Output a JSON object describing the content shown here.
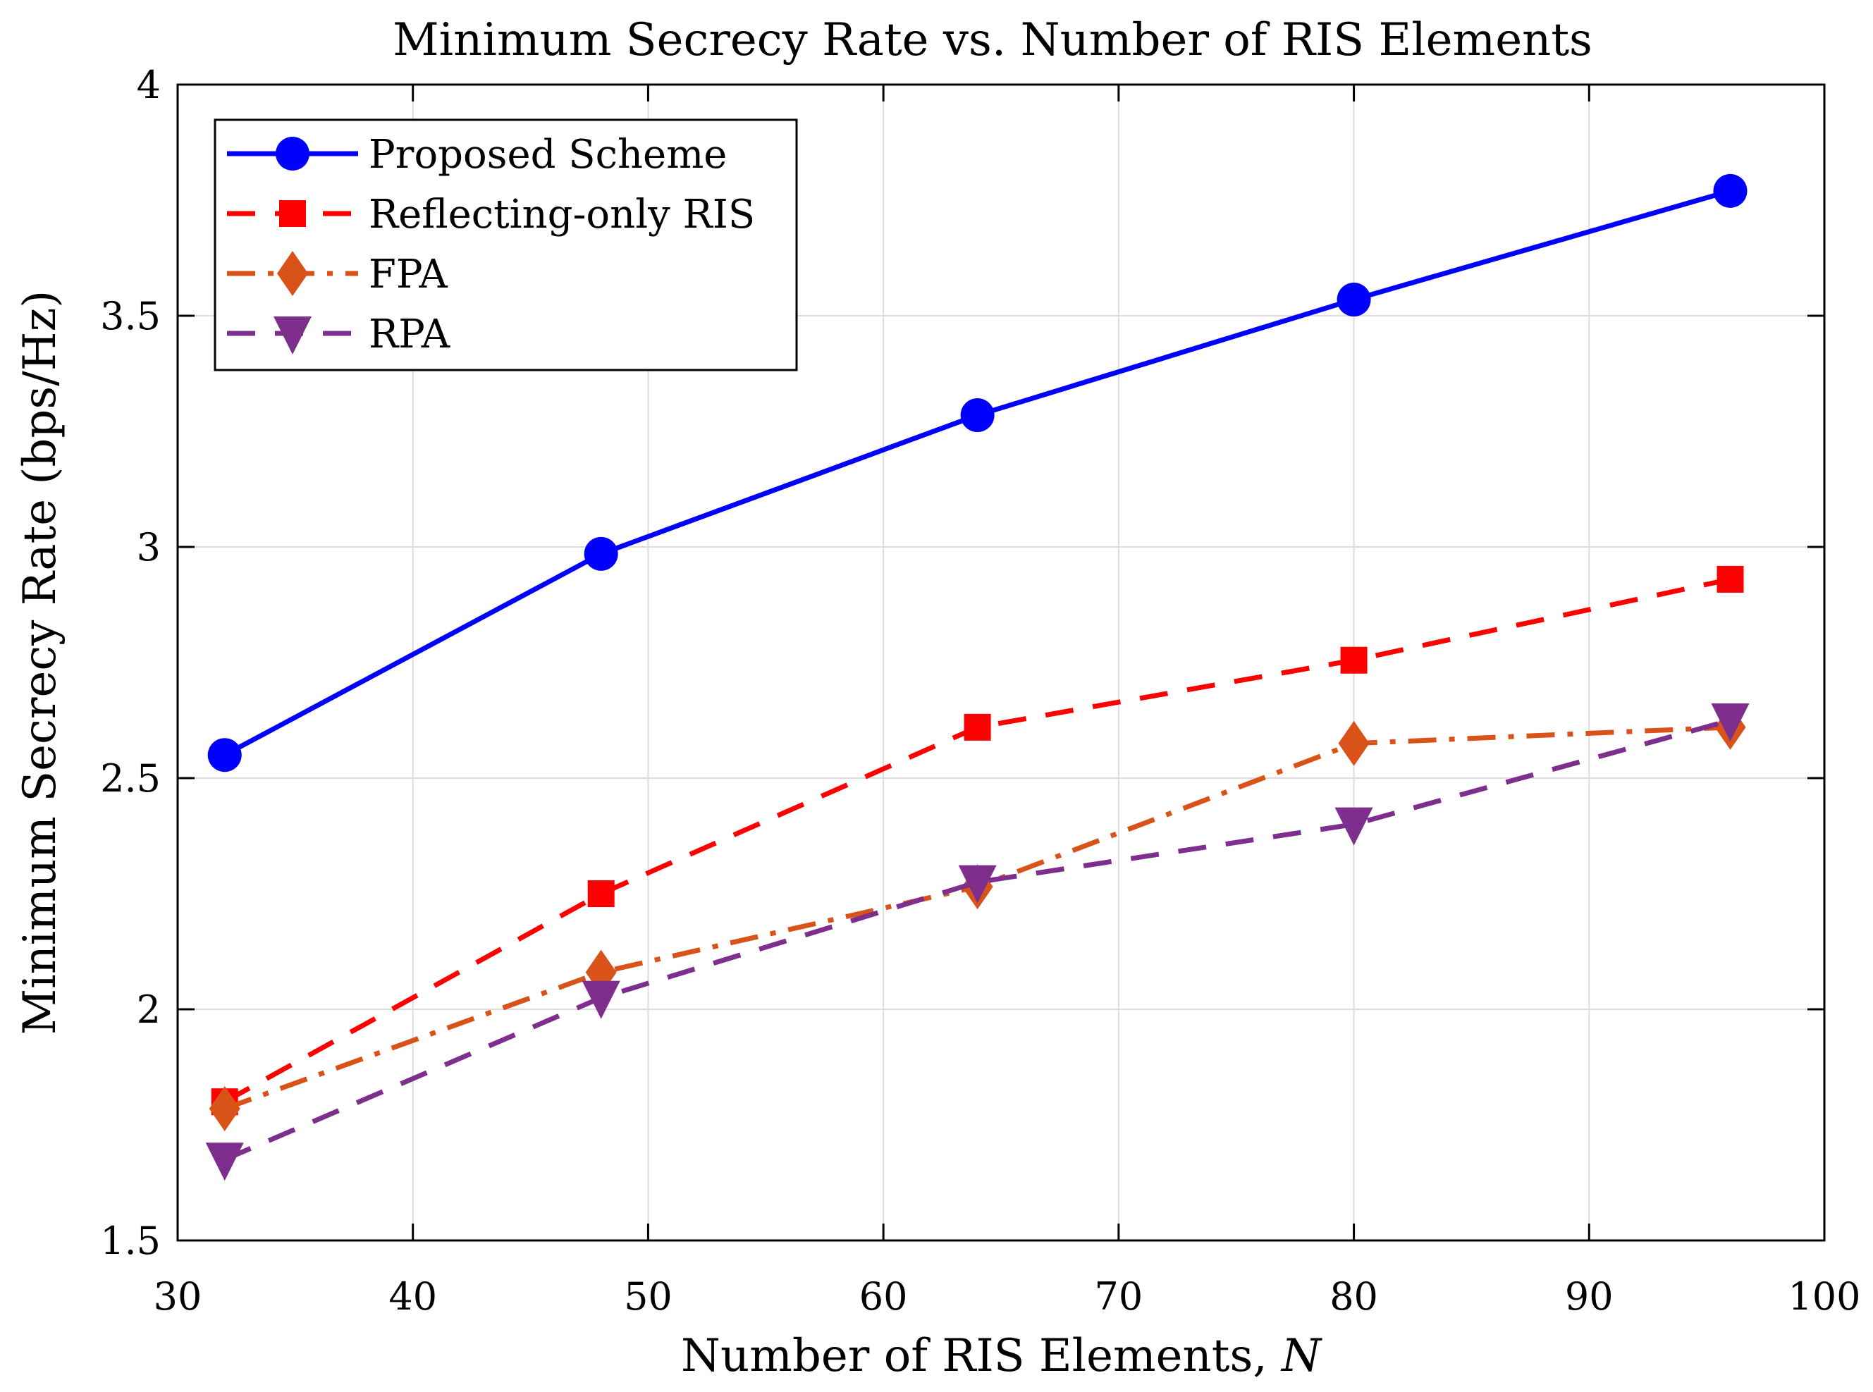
{
  "chart_data": {
    "type": "line",
    "title": "Minimum Secrecy Rate vs. Number of RIS Elements",
    "xlabel": "Number of RIS Elements, ",
    "xlabel_var": "N",
    "ylabel": "Minimum Secrecy Rate (bps/Hz)",
    "xlim": [
      30,
      100
    ],
    "ylim": [
      1.5,
      4
    ],
    "xticks": [
      30,
      40,
      50,
      60,
      70,
      80,
      90,
      100
    ],
    "yticks": [
      1.5,
      2,
      2.5,
      3,
      3.5,
      4
    ],
    "ytick_labels": [
      "1.5",
      "2",
      "2.5",
      "3",
      "3.5",
      "4"
    ],
    "grid": true,
    "legend_position": "top-left",
    "x": [
      32,
      48,
      64,
      80,
      96
    ],
    "series": [
      {
        "name": "Proposed Scheme",
        "values": [
          2.55,
          2.985,
          3.285,
          3.535,
          3.77
        ],
        "color": "#0000ff",
        "dash": "solid",
        "marker": "circle"
      },
      {
        "name": "Reflecting-only RIS",
        "values": [
          1.8,
          2.25,
          2.61,
          2.755,
          2.93
        ],
        "color": "#ff0000",
        "dash": "dashed",
        "marker": "square"
      },
      {
        "name": "FPA",
        "values": [
          1.785,
          2.08,
          2.265,
          2.575,
          2.61
        ],
        "color": "#d95319",
        "dash": "dashdot",
        "marker": "diamond"
      },
      {
        "name": "RPA",
        "values": [
          1.675,
          2.025,
          2.275,
          2.4,
          2.625
        ],
        "color": "#7e2f8e",
        "dash": "dashed",
        "marker": "triangle-down"
      }
    ]
  }
}
